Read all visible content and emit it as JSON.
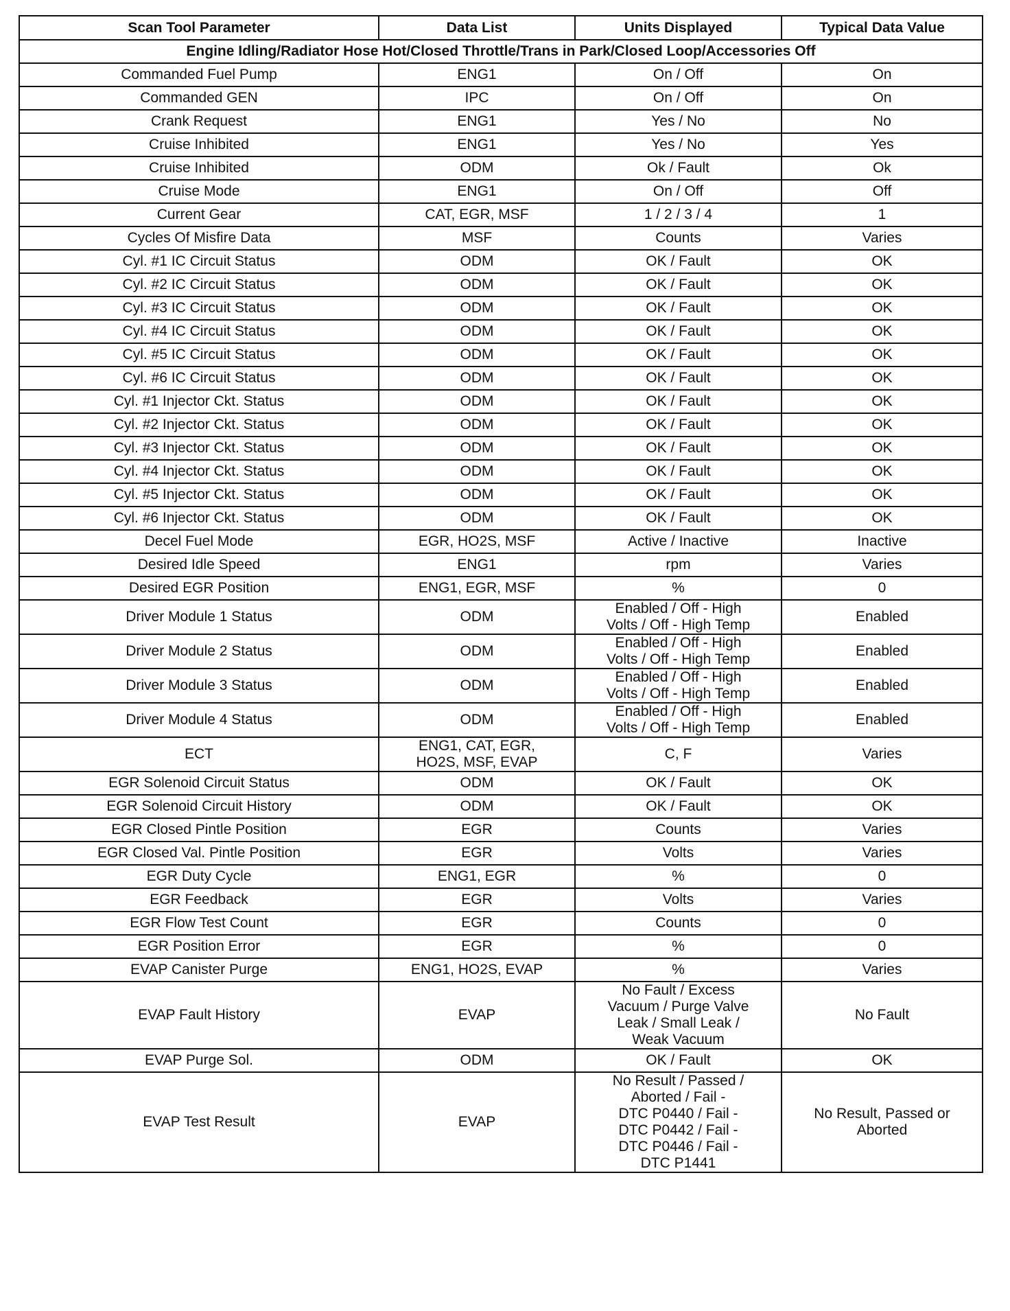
{
  "headers": [
    "Scan Tool Parameter",
    "Data List",
    "Units Displayed",
    "Typical Data Value"
  ],
  "condition": "Engine Idling/Radiator Hose Hot/Closed Throttle/Trans in Park/Closed Loop/Accessories Off",
  "rows": [
    [
      "Commanded Fuel Pump",
      "ENG1",
      "On / Off",
      "On"
    ],
    [
      "Commanded GEN",
      "IPC",
      "On / Off",
      "On"
    ],
    [
      "Crank Request",
      "ENG1",
      "Yes / No",
      "No"
    ],
    [
      "Cruise Inhibited",
      "ENG1",
      "Yes / No",
      "Yes"
    ],
    [
      "Cruise Inhibited",
      "ODM",
      "Ok / Fault",
      "Ok"
    ],
    [
      "Cruise Mode",
      "ENG1",
      "On / Off",
      "Off"
    ],
    [
      "Current Gear",
      "CAT, EGR, MSF",
      "1 / 2 / 3 / 4",
      "1"
    ],
    [
      "Cycles Of Misfire Data",
      "MSF",
      "Counts",
      "Varies"
    ],
    [
      "Cyl. #1 IC Circuit Status",
      "ODM",
      "OK / Fault",
      "OK"
    ],
    [
      "Cyl. #2 IC Circuit Status",
      "ODM",
      "OK / Fault",
      "OK"
    ],
    [
      "Cyl. #3 IC Circuit Status",
      "ODM",
      "OK / Fault",
      "OK"
    ],
    [
      "Cyl. #4 IC Circuit Status",
      "ODM",
      "OK / Fault",
      "OK"
    ],
    [
      "Cyl. #5 IC Circuit Status",
      "ODM",
      "OK / Fault",
      "OK"
    ],
    [
      "Cyl. #6 IC Circuit Status",
      "ODM",
      "OK / Fault",
      "OK"
    ],
    [
      "Cyl. #1 Injector Ckt. Status",
      "ODM",
      "OK / Fault",
      "OK"
    ],
    [
      "Cyl. #2 Injector Ckt. Status",
      "ODM",
      "OK / Fault",
      "OK"
    ],
    [
      "Cyl. #3 Injector Ckt. Status",
      "ODM",
      "OK / Fault",
      "OK"
    ],
    [
      "Cyl. #4 Injector Ckt. Status",
      "ODM",
      "OK / Fault",
      "OK"
    ],
    [
      "Cyl. #5 Injector Ckt. Status",
      "ODM",
      "OK / Fault",
      "OK"
    ],
    [
      "Cyl. #6 Injector Ckt. Status",
      "ODM",
      "OK / Fault",
      "OK"
    ],
    [
      "Decel Fuel Mode",
      "EGR, HO2S, MSF",
      "Active / Inactive",
      "Inactive"
    ],
    [
      "Desired Idle Speed",
      "ENG1",
      "rpm",
      "Varies"
    ],
    [
      "Desired EGR Position",
      "ENG1, EGR, MSF",
      "%",
      "0"
    ],
    [
      "Driver Module 1 Status",
      "ODM",
      "Enabled / Off - High\nVolts / Off - High Temp",
      "Enabled"
    ],
    [
      "Driver Module 2 Status",
      "ODM",
      "Enabled / Off - High\nVolts / Off - High Temp",
      "Enabled"
    ],
    [
      "Driver Module 3 Status",
      "ODM",
      "Enabled / Off - High\nVolts / Off - High Temp",
      "Enabled"
    ],
    [
      "Driver Module 4 Status",
      "ODM",
      "Enabled / Off - High\nVolts / Off - High Temp",
      "Enabled"
    ],
    [
      "ECT",
      "ENG1, CAT, EGR,\nHO2S, MSF, EVAP",
      "C, F",
      "Varies"
    ],
    [
      "EGR Solenoid Circuit Status",
      "ODM",
      "OK / Fault",
      "OK"
    ],
    [
      "EGR Solenoid Circuit History",
      "ODM",
      "OK / Fault",
      "OK"
    ],
    [
      "EGR Closed Pintle Position",
      "EGR",
      "Counts",
      "Varies"
    ],
    [
      "EGR Closed Val. Pintle Position",
      "EGR",
      "Volts",
      "Varies"
    ],
    [
      "EGR Duty Cycle",
      "ENG1, EGR",
      "%",
      "0"
    ],
    [
      "EGR Feedback",
      "EGR",
      "Volts",
      "Varies"
    ],
    [
      "EGR Flow Test Count",
      "EGR",
      "Counts",
      "0"
    ],
    [
      "EGR Position Error",
      "EGR",
      "%",
      "0"
    ],
    [
      "EVAP Canister Purge",
      "ENG1, HO2S, EVAP",
      "%",
      "Varies"
    ],
    [
      "EVAP Fault History",
      "EVAP",
      "No Fault / Excess\nVacuum / Purge Valve\nLeak / Small Leak /\nWeak Vacuum",
      "No Fault"
    ],
    [
      "EVAP Purge Sol.",
      "ODM",
      "OK / Fault",
      "OK"
    ],
    [
      "EVAP Test Result",
      "EVAP",
      "No Result / Passed /\nAborted / Fail -\nDTC P0440 / Fail -\nDTC P0442 / Fail -\nDTC P0446 / Fail -\nDTC P1441",
      "No Result, Passed or\nAborted"
    ]
  ]
}
